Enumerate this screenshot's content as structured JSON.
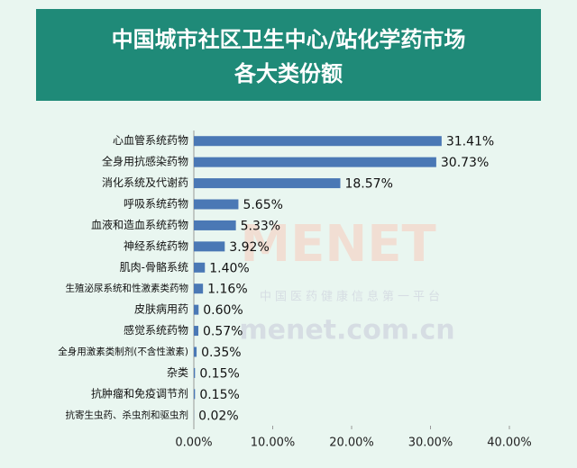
{
  "chart_data": {
    "type": "hbar",
    "title": [
      "中国城市社区卫生中心/站化学药市场",
      "各大类份额"
    ],
    "watermark": [
      "MENET",
      "中国医药健康信息第一平台",
      "menet.com.cn"
    ],
    "categories": [
      "心血管系统药物",
      "全身用抗感染药物",
      "消化系统及代谢药",
      "呼吸系统药物",
      "血液和造血系统药物",
      "神经系统药物",
      "肌肉-骨骼系统",
      "生殖泌尿系统和性激素类药物",
      "皮肤病用药",
      "感觉系统药物",
      "全身用激素类制剂(不含性激素)",
      "杂类",
      "抗肿瘤和免疫调节剂",
      "抗寄生虫药、杀虫剂和驱虫剂"
    ],
    "values": [
      31.41,
      30.73,
      18.57,
      5.65,
      5.33,
      3.92,
      1.4,
      1.16,
      0.6,
      0.57,
      0.35,
      0.15,
      0.15,
      0.02
    ],
    "value_labels": [
      "31.41%",
      "30.73%",
      "18.57%",
      "5.65%",
      "5.33%",
      "3.92%",
      "1.40%",
      "1.16%",
      "0.60%",
      "0.57%",
      "0.35%",
      "0.15%",
      "0.15%",
      "0.02%"
    ],
    "color": "#4a78b5",
    "xlim": [
      0,
      40
    ],
    "xticks": [
      {
        "value": 0,
        "label": "0.00%"
      },
      {
        "value": 10,
        "label": "10.00%"
      },
      {
        "value": 20,
        "label": "20.00%"
      },
      {
        "value": 30,
        "label": "30.00%"
      },
      {
        "value": 40,
        "label": "40.00%"
      }
    ]
  }
}
